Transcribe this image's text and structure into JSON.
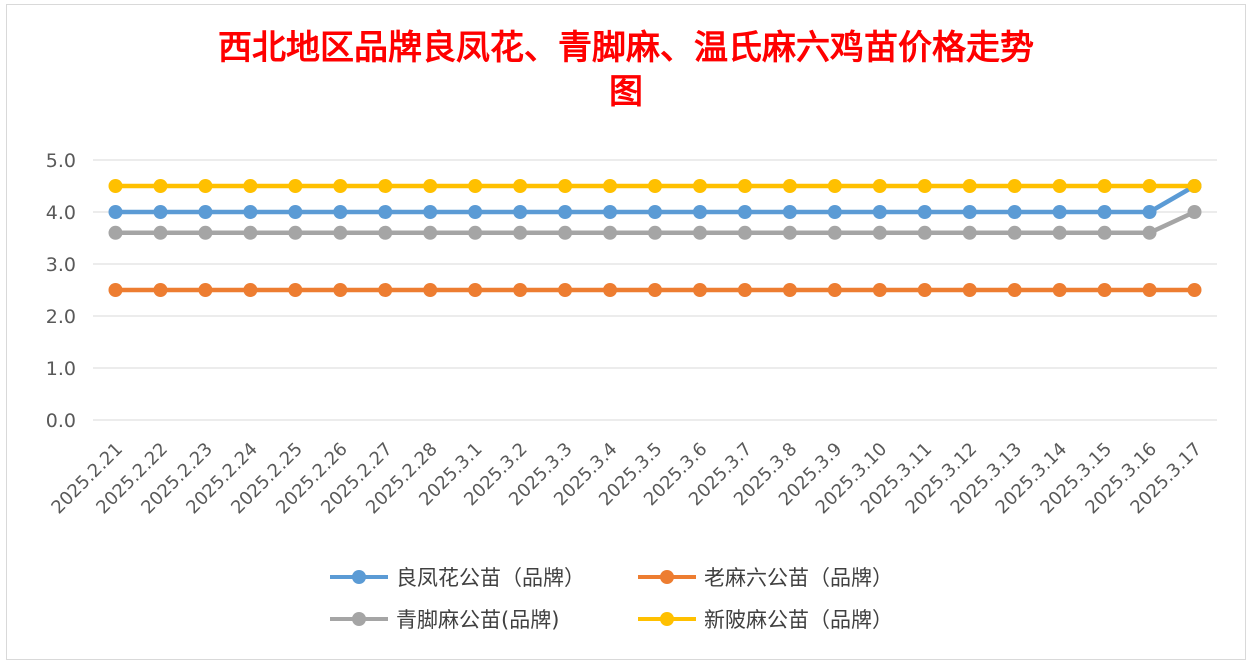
{
  "chart_data": {
    "type": "line",
    "title_lines": [
      "西北地区品牌良凤花、青脚麻、温氏麻六鸡苗价格走势",
      "图"
    ],
    "xlabel": "",
    "ylabel": "",
    "ylim": [
      0,
      5
    ],
    "yticks": [
      "0.0",
      "1.0",
      "2.0",
      "3.0",
      "4.0",
      "5.0"
    ],
    "grid": true,
    "legend_position": "bottom",
    "categories": [
      "2025.2.21",
      "2025.2.22",
      "2025.2.23",
      "2025.2.24",
      "2025.2.25",
      "2025.2.26",
      "2025.2.27",
      "2025.2.28",
      "2025.3.1",
      "2025.3.2",
      "2025.3.3",
      "2025.3.4",
      "2025.3.5",
      "2025.3.6",
      "2025.3.7",
      "2025.3.8",
      "2025.3.9",
      "2025.3.10",
      "2025.3.11",
      "2025.3.12",
      "2025.3.13",
      "2025.3.14",
      "2025.3.15",
      "2025.3.16",
      "2025.3.17"
    ],
    "series": [
      {
        "name": "良凤花公苗（品牌）",
        "color": "#5b9bd5",
        "values": [
          4.0,
          4.0,
          4.0,
          4.0,
          4.0,
          4.0,
          4.0,
          4.0,
          4.0,
          4.0,
          4.0,
          4.0,
          4.0,
          4.0,
          4.0,
          4.0,
          4.0,
          4.0,
          4.0,
          4.0,
          4.0,
          4.0,
          4.0,
          4.0,
          4.5
        ]
      },
      {
        "name": "老麻六公苗（品牌）",
        "color": "#ed7d31",
        "values": [
          2.5,
          2.5,
          2.5,
          2.5,
          2.5,
          2.5,
          2.5,
          2.5,
          2.5,
          2.5,
          2.5,
          2.5,
          2.5,
          2.5,
          2.5,
          2.5,
          2.5,
          2.5,
          2.5,
          2.5,
          2.5,
          2.5,
          2.5,
          2.5,
          2.5
        ]
      },
      {
        "name": "青脚麻公苗(品牌)",
        "color": "#a5a5a5",
        "values": [
          3.6,
          3.6,
          3.6,
          3.6,
          3.6,
          3.6,
          3.6,
          3.6,
          3.6,
          3.6,
          3.6,
          3.6,
          3.6,
          3.6,
          3.6,
          3.6,
          3.6,
          3.6,
          3.6,
          3.6,
          3.6,
          3.6,
          3.6,
          3.6,
          4.0
        ]
      },
      {
        "name": "新陂麻公苗（品牌）",
        "color": "#ffc000",
        "values": [
          4.5,
          4.5,
          4.5,
          4.5,
          4.5,
          4.5,
          4.5,
          4.5,
          4.5,
          4.5,
          4.5,
          4.5,
          4.5,
          4.5,
          4.5,
          4.5,
          4.5,
          4.5,
          4.5,
          4.5,
          4.5,
          4.5,
          4.5,
          4.5,
          4.5
        ]
      }
    ]
  }
}
